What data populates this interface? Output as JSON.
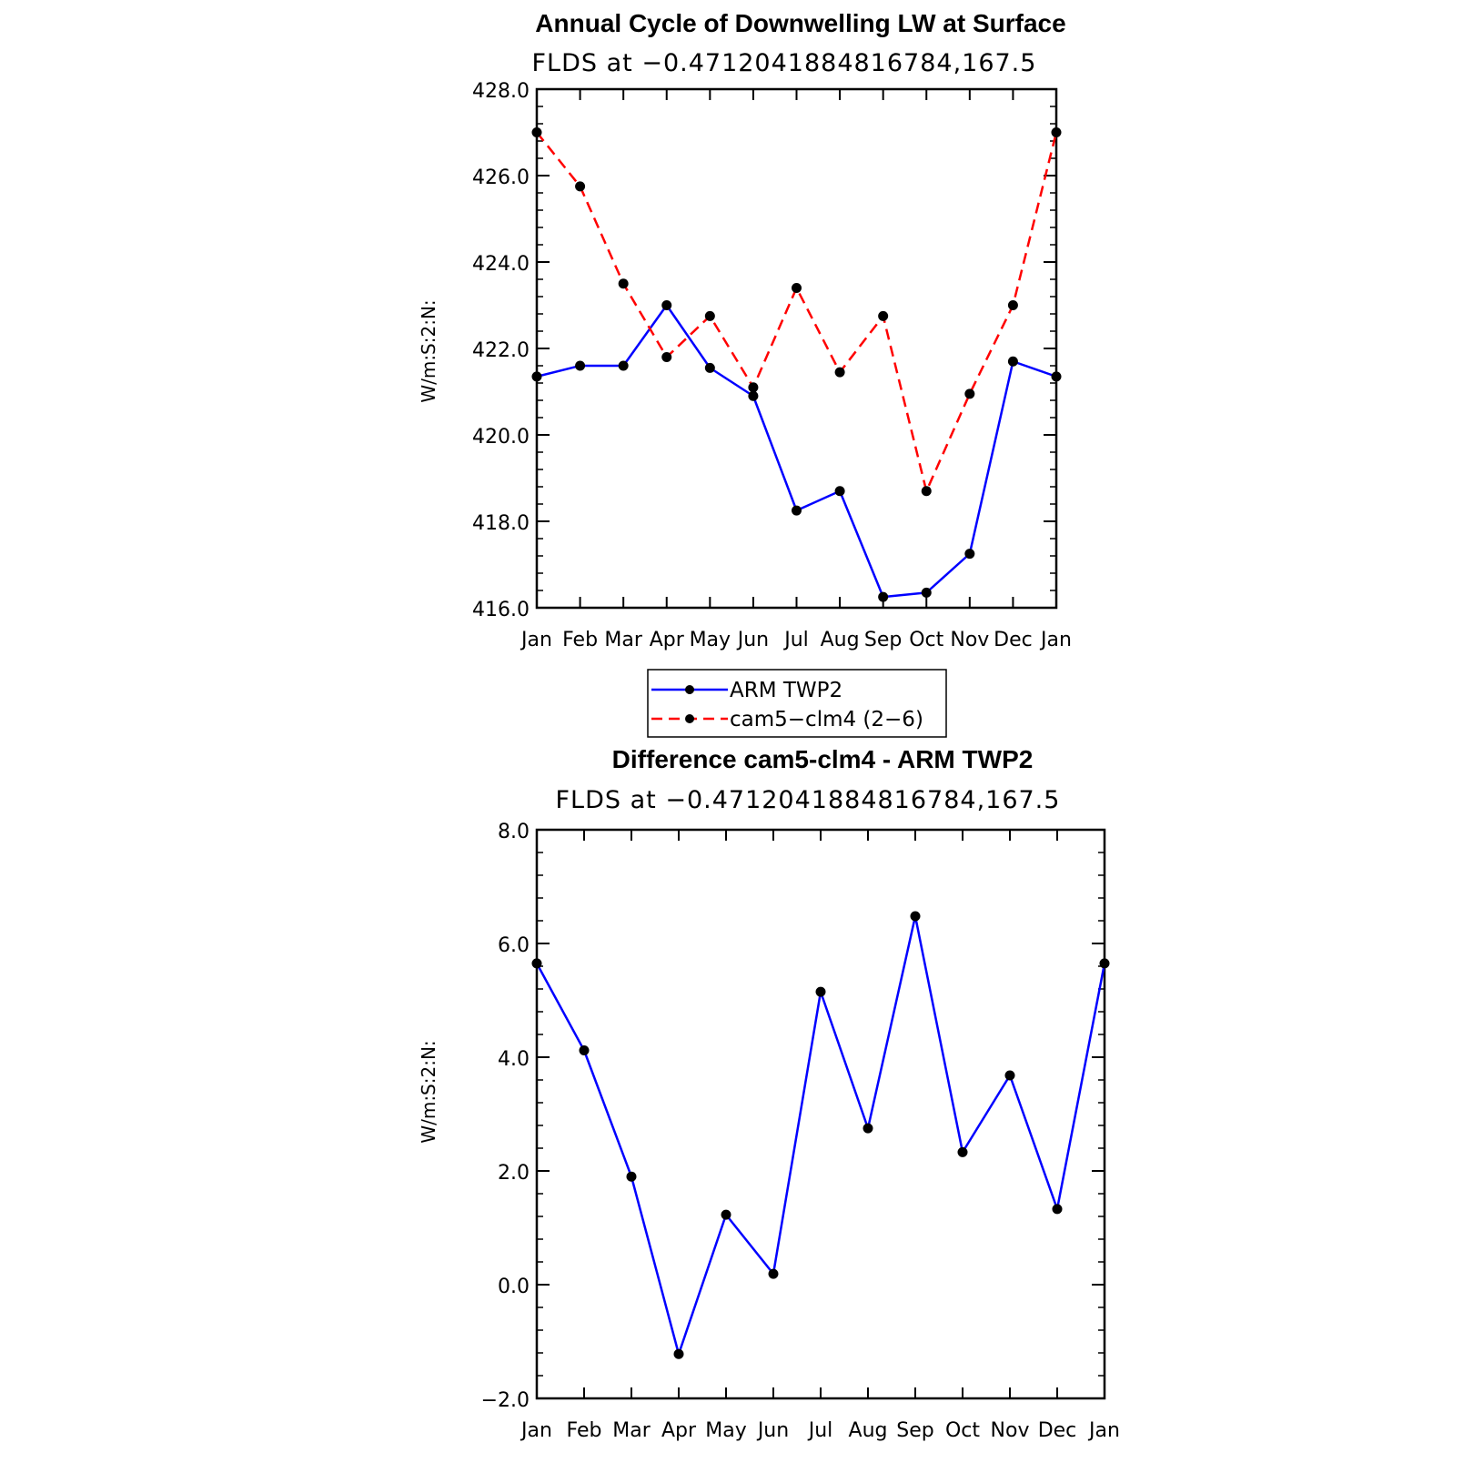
{
  "chart_data": [
    {
      "type": "line",
      "title": "Annual Cycle of Downwelling LW at Surface",
      "subtitle": "FLDS at −0.4712041884816784,167.5",
      "ylabel": "W/m:S:2:N:",
      "xlabel": "",
      "categories": [
        "Jan",
        "Feb",
        "Mar",
        "Apr",
        "May",
        "Jun",
        "Jul",
        "Aug",
        "Sep",
        "Oct",
        "Nov",
        "Dec",
        "Jan"
      ],
      "ylim": [
        416.0,
        428.0
      ],
      "yticks": [
        "416.0",
        "418.0",
        "420.0",
        "422.0",
        "424.0",
        "426.0",
        "428.0"
      ],
      "minor_step": 0.4,
      "series": [
        {
          "name": "ARM TWP2",
          "color": "#0000ff",
          "dash": "solid",
          "values": [
            421.35,
            421.6,
            421.6,
            423.0,
            421.55,
            420.9,
            418.25,
            418.7,
            416.25,
            416.35,
            417.25,
            421.7,
            421.35
          ]
        },
        {
          "name": "cam5−clm4 (2−6)",
          "color": "#ff0000",
          "dash": "dashed",
          "values": [
            427.0,
            425.75,
            423.5,
            421.8,
            422.75,
            421.1,
            423.4,
            421.45,
            422.75,
            418.7,
            420.95,
            423.0,
            427.0
          ]
        }
      ],
      "legend": [
        "ARM TWP2",
        "cam5−clm4 (2−6)"
      ],
      "legend_position": "below",
      "grid": false
    },
    {
      "type": "line",
      "title": "Difference cam5-clm4 - ARM TWP2",
      "subtitle": "FLDS at −0.4712041884816784,167.5",
      "ylabel": "W/m:S:2:N:",
      "xlabel": "",
      "categories": [
        "Jan",
        "Feb",
        "Mar",
        "Apr",
        "May",
        "Jun",
        "Jul",
        "Aug",
        "Sep",
        "Oct",
        "Nov",
        "Dec",
        "Jan"
      ],
      "ylim": [
        -2.0,
        8.0
      ],
      "yticks": [
        "−2.0",
        "0.0",
        "2.0",
        "4.0",
        "6.0",
        "8.0"
      ],
      "minor_step": 0.4,
      "series": [
        {
          "color": "#0000ff",
          "dash": "solid",
          "values": [
            5.65,
            4.12,
            1.9,
            -1.22,
            1.23,
            0.19,
            5.15,
            2.75,
            6.48,
            2.33,
            3.68,
            1.33,
            5.65
          ]
        }
      ],
      "grid": false
    }
  ]
}
